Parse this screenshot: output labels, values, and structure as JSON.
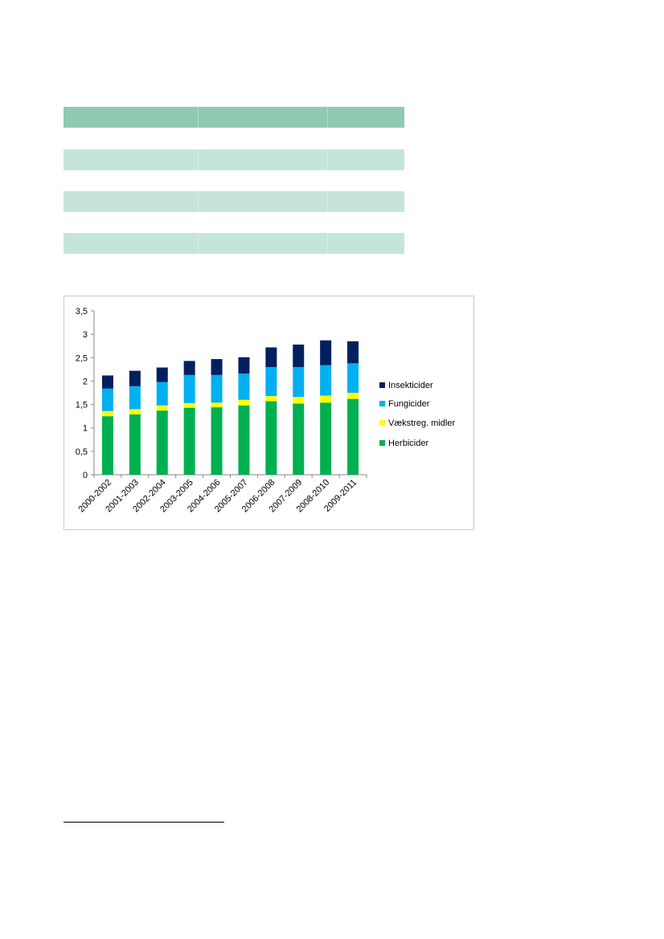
{
  "table": {
    "rows": [
      {
        "style": "header",
        "cells": [
          "",
          "",
          ""
        ]
      },
      {
        "style": "band",
        "cells": [
          "",
          "",
          ""
        ]
      },
      {
        "style": "band",
        "cells": [
          "",
          "",
          ""
        ]
      },
      {
        "style": "band",
        "cells": [
          "",
          "",
          ""
        ]
      }
    ]
  },
  "chart_data": {
    "type": "bar",
    "stacked": true,
    "title": "",
    "xlabel": "",
    "ylabel": "",
    "categories": [
      "2000-2002",
      "2001-2003",
      "2002-2004",
      "2003-2005",
      "2004-2006",
      "2005-2007",
      "2006-2008",
      "2007-2009",
      "2008-2010",
      "2009-2011"
    ],
    "series": [
      {
        "name": "Herbicider",
        "color": "#00b050",
        "values": [
          1.25,
          1.29,
          1.37,
          1.43,
          1.44,
          1.48,
          1.57,
          1.52,
          1.54,
          1.62
        ]
      },
      {
        "name": "Vækstreg. midler",
        "color": "#ffff00",
        "values": [
          0.11,
          0.11,
          0.11,
          0.1,
          0.1,
          0.12,
          0.11,
          0.14,
          0.15,
          0.13
        ]
      },
      {
        "name": "Fungicider",
        "color": "#00b0f0",
        "values": [
          0.48,
          0.49,
          0.5,
          0.6,
          0.59,
          0.56,
          0.62,
          0.64,
          0.65,
          0.63
        ]
      },
      {
        "name": "Insekticider",
        "color": "#002060",
        "values": [
          0.28,
          0.33,
          0.31,
          0.3,
          0.34,
          0.35,
          0.42,
          0.48,
          0.53,
          0.47
        ]
      }
    ],
    "ylim": [
      0,
      3.5
    ],
    "yticks": [
      "0",
      "0,5",
      "1",
      "1,5",
      "2",
      "2,5",
      "3",
      "3,5"
    ],
    "grid": false,
    "legend_position": "right",
    "legend_order": [
      "Insekticider",
      "Fungicider",
      "Vækstreg. midler",
      "Herbicider"
    ]
  }
}
